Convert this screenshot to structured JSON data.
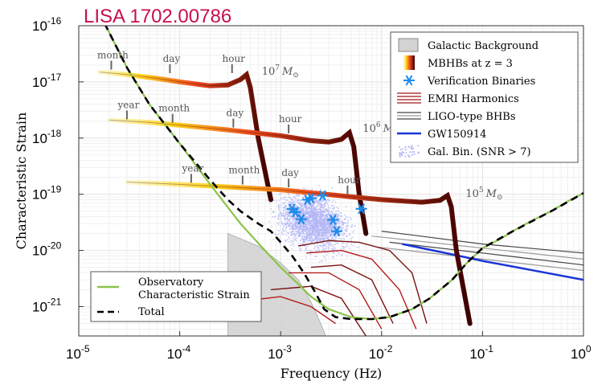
{
  "chart_data": {
    "type": "line",
    "title": "LISA 1702.00786",
    "xlabel": "Frequency (Hz)",
    "ylabel": "Characteristic Strain",
    "x_scale": "log",
    "y_scale": "log",
    "xlim": [
      1e-05,
      1
    ],
    "ylim": [
      3e-22,
      1e-16
    ],
    "x_ticks": [
      {
        "value": 1e-05,
        "base": "10",
        "exp": "-5"
      },
      {
        "value": 0.0001,
        "base": "10",
        "exp": "-4"
      },
      {
        "value": 0.001,
        "base": "10",
        "exp": "-3"
      },
      {
        "value": 0.01,
        "base": "10",
        "exp": "-2"
      },
      {
        "value": 0.1,
        "base": "10",
        "exp": "-1"
      },
      {
        "value": 1,
        "base": "10",
        "exp": "0"
      }
    ],
    "y_ticks": [
      {
        "value": 1e-16,
        "base": "10",
        "exp": "-16"
      },
      {
        "value": 1e-17,
        "base": "10",
        "exp": "-17"
      },
      {
        "value": 1e-18,
        "base": "10",
        "exp": "-18"
      },
      {
        "value": 1e-19,
        "base": "10",
        "exp": "-19"
      },
      {
        "value": 1e-20,
        "base": "10",
        "exp": "-20"
      },
      {
        "value": 1e-21,
        "base": "10",
        "exp": "-21"
      }
    ],
    "grid": true,
    "legend_position": "top-right",
    "legend": [
      {
        "label": "Galactic Background",
        "symbol": "gray-box"
      },
      {
        "label": "MBHBs at z = 3",
        "symbol": "gradient-bar"
      },
      {
        "label": "Verification Binaries",
        "symbol": "blue-asterisk"
      },
      {
        "label": "EMRI Harmonics",
        "symbol": "red-lines"
      },
      {
        "label": "LIGO-type BHBs",
        "symbol": "gray-lines"
      },
      {
        "label": "GW150914",
        "symbol": "blue-line"
      },
      {
        "label": "Gal. Bin. (SNR > 7)",
        "symbol": "lavender-dots"
      }
    ],
    "legend2_position": "bottom-left",
    "legend2": [
      {
        "label": "Observatory",
        "label2": "Characteristic Strain",
        "symbol": "green-line"
      },
      {
        "label": "Total",
        "symbol": "black-dash"
      }
    ],
    "series": [
      {
        "name": "Observatory Characteristic Strain",
        "color": "#8bc34a",
        "points": [
          [
            1.8e-05,
            1.1e-16
          ],
          [
            3e-05,
            1.8e-17
          ],
          [
            5e-05,
            4e-18
          ],
          [
            0.0001,
            8e-19
          ],
          [
            0.0002,
            1.5e-19
          ],
          [
            0.0004,
            3e-20
          ],
          [
            0.0007,
            1e-20
          ],
          [
            0.001,
            5e-21
          ],
          [
            0.0015,
            2.5e-21
          ],
          [
            0.002,
            1.5e-21
          ],
          [
            0.003,
            9e-22
          ],
          [
            0.005,
            6.5e-22
          ],
          [
            0.008,
            6e-22
          ],
          [
            0.012,
            6.5e-22
          ],
          [
            0.02,
            9e-22
          ],
          [
            0.03,
            1.4e-21
          ],
          [
            0.05,
            3e-21
          ],
          [
            0.07,
            6e-21
          ],
          [
            0.1,
            1.1e-20
          ],
          [
            0.15,
            1.6e-20
          ],
          [
            0.2,
            2.2e-20
          ],
          [
            0.3,
            3.3e-20
          ],
          [
            0.5,
            5.2e-20
          ],
          [
            0.7,
            7.5e-20
          ],
          [
            1,
            1.05e-19
          ]
        ]
      },
      {
        "name": "Total",
        "color": "#000000",
        "points": [
          [
            1.8e-05,
            1.1e-16
          ],
          [
            3e-05,
            1.8e-17
          ],
          [
            5e-05,
            4e-18
          ],
          [
            0.0001,
            8e-19
          ],
          [
            0.0002,
            1.8e-19
          ],
          [
            0.0003,
            8e-20
          ],
          [
            0.0004,
            5e-20
          ],
          [
            0.0006,
            3e-20
          ],
          [
            0.0008,
            2.2e-20
          ],
          [
            0.001,
            1.4e-20
          ],
          [
            0.0013,
            8e-21
          ],
          [
            0.0017,
            4e-21
          ],
          [
            0.0022,
            1.8e-21
          ],
          [
            0.0027,
            9e-22
          ],
          [
            0.0035,
            6.5e-22
          ],
          [
            0.005,
            6e-22
          ],
          [
            0.008,
            6e-22
          ],
          [
            0.012,
            6.5e-22
          ],
          [
            0.02,
            9e-22
          ],
          [
            0.03,
            1.4e-21
          ],
          [
            0.05,
            3e-21
          ],
          [
            0.07,
            6e-21
          ],
          [
            0.1,
            1.1e-20
          ],
          [
            0.2,
            2.2e-20
          ],
          [
            0.5,
            5.2e-20
          ],
          [
            1,
            1.05e-19
          ]
        ]
      },
      {
        "name": "Galactic Background",
        "color": "#d3d3d3",
        "points": [
          [
            0.0003,
            3e-22
          ],
          [
            0.0003,
            2e-20
          ],
          [
            0.0006,
            1.2e-20
          ],
          [
            0.001,
            6e-21
          ],
          [
            0.0015,
            3e-21
          ],
          [
            0.002,
            1.2e-21
          ],
          [
            0.0025,
            5e-22
          ],
          [
            0.0028,
            3e-22
          ]
        ]
      },
      {
        "name": "MBHB 10^7 M_sun",
        "color": "#5a0000",
        "points": [
          [
            1.6e-05,
            1.5e-17
          ],
          [
            3e-05,
            1.35e-17
          ],
          [
            6e-05,
            1.15e-17
          ],
          [
            0.0001,
            1e-17
          ],
          [
            0.0002,
            8.5e-18
          ],
          [
            0.0003,
            8.8e-18
          ],
          [
            0.0004,
            1.1e-17
          ],
          [
            0.00046,
            1.35e-17
          ],
          [
            0.0005,
            8e-18
          ],
          [
            0.0006,
            1e-18
          ],
          [
            0.0008,
            8e-20
          ]
        ]
      },
      {
        "name": "MBHB 10^6 M_sun",
        "color": "#5a0000",
        "points": [
          [
            2e-05,
            2.1e-18
          ],
          [
            5e-05,
            1.9e-18
          ],
          [
            0.0001,
            1.7e-18
          ],
          [
            0.0003,
            1.4e-18
          ],
          [
            0.001,
            1.1e-18
          ],
          [
            0.002,
            9e-19
          ],
          [
            0.003,
            8.5e-19
          ],
          [
            0.004,
            9.5e-19
          ],
          [
            0.0048,
            1.25e-18
          ],
          [
            0.0053,
            7e-19
          ],
          [
            0.006,
            1e-19
          ],
          [
            0.007,
            2e-20
          ]
        ]
      },
      {
        "name": "MBHB 10^5 M_sun",
        "color": "#5a0000",
        "points": [
          [
            3e-05,
            1.65e-19
          ],
          [
            0.0001,
            1.5e-19
          ],
          [
            0.0003,
            1.35e-19
          ],
          [
            0.001,
            1.2e-19
          ],
          [
            0.005,
            9e-20
          ],
          [
            0.01,
            8e-20
          ],
          [
            0.025,
            7.2e-20
          ],
          [
            0.038,
            7.8e-20
          ],
          [
            0.045,
            9.5e-20
          ],
          [
            0.049,
            6e-20
          ],
          [
            0.055,
            1e-20
          ],
          [
            0.075,
            5e-22
          ]
        ]
      },
      {
        "name": "GW150914",
        "color": "#1a36d6",
        "points": [
          [
            0.016,
            1.3e-20
          ],
          [
            0.05,
            8.5e-21
          ],
          [
            0.1,
            6.5e-21
          ],
          [
            0.3,
            4.5e-21
          ],
          [
            1,
            3e-21
          ]
        ]
      }
    ],
    "emri_harmonics": [
      [
        [
          0.0015,
          1.2e-20
        ],
        [
          0.003,
          1.5e-20
        ],
        [
          0.006,
          1.4e-20
        ],
        [
          0.012,
          1e-20
        ],
        [
          0.02,
          4e-21
        ],
        [
          0.028,
          5e-22
        ]
      ],
      [
        [
          0.0018,
          9e-21
        ],
        [
          0.004,
          1e-20
        ],
        [
          0.008,
          7e-21
        ],
        [
          0.015,
          2e-21
        ],
        [
          0.022,
          4e-22
        ]
      ],
      [
        [
          0.002,
          5e-21
        ],
        [
          0.004,
          5.5e-21
        ],
        [
          0.008,
          3e-21
        ],
        [
          0.013,
          5e-22
        ]
      ],
      [
        [
          0.0012,
          4e-21
        ],
        [
          0.003,
          4e-21
        ],
        [
          0.006,
          2e-21
        ],
        [
          0.01,
          4e-22
        ]
      ],
      [
        [
          0.0008,
          2e-21
        ],
        [
          0.002,
          2.3e-21
        ],
        [
          0.004,
          1.4e-21
        ],
        [
          0.007,
          3e-22
        ]
      ],
      [
        [
          0.0005,
          1.3e-21
        ],
        [
          0.001,
          1.5e-21
        ],
        [
          0.002,
          1e-21
        ],
        [
          0.0035,
          5e-22
        ]
      ]
    ],
    "ligo_bhbs": [
      [
        [
          0.01,
          2.2e-20
        ],
        [
          0.1,
          1.3e-20
        ],
        [
          1,
          9e-21
        ]
      ],
      [
        [
          0.008,
          1.8e-20
        ],
        [
          0.1,
          1.1e-20
        ],
        [
          1,
          7e-21
        ]
      ],
      [
        [
          0.012,
          1.4e-20
        ],
        [
          0.1,
          9e-21
        ],
        [
          1,
          5.5e-21
        ]
      ],
      [
        [
          0.009,
          1.15e-20
        ],
        [
          0.1,
          7e-21
        ],
        [
          1,
          4.4e-21
        ]
      ]
    ],
    "verification_binaries": [
      [
        0.0013,
        5.5e-20
      ],
      [
        0.0014,
        4.8e-20
      ],
      [
        0.0016,
        3.6e-20
      ],
      [
        0.00185,
        8e-20
      ],
      [
        0.002,
        8.5e-20
      ],
      [
        0.0026,
        9.5e-20
      ],
      [
        0.0033,
        3.5e-20
      ],
      [
        0.0036,
        2.2e-20
      ],
      [
        0.0063,
        5.5e-20
      ]
    ],
    "annotations": {
      "mass_labels": [
        {
          "base": "10",
          "exp": "7",
          "unit": "M",
          "at": [
            0.00065,
            1.35e-17
          ]
        },
        {
          "base": "10",
          "exp": "6",
          "unit": "M",
          "at": [
            0.0065,
            1.3e-18
          ]
        },
        {
          "base": "10",
          "exp": "5",
          "unit": "M",
          "at": [
            0.068,
            9e-20
          ]
        }
      ],
      "time_markers": [
        {
          "label": "month",
          "at": [
            2.1e-05,
            1.5e-17
          ]
        },
        {
          "label": "day",
          "at": [
            8e-05,
            1.3e-17
          ]
        },
        {
          "label": "hour",
          "at": [
            0.00033,
            1.3e-17
          ]
        },
        {
          "label": "year",
          "at": [
            3e-05,
            1.95e-18
          ]
        },
        {
          "label": "month",
          "at": [
            8.5e-05,
            1.7e-18
          ]
        },
        {
          "label": "day",
          "at": [
            0.00034,
            1.4e-18
          ]
        },
        {
          "label": "hour",
          "at": [
            0.0012,
            1.1e-18
          ]
        },
        {
          "label": "year",
          "at": [
            0.00013,
            1.45e-19
          ]
        },
        {
          "label": "month",
          "at": [
            0.00042,
            1.35e-19
          ]
        },
        {
          "label": "day",
          "at": [
            0.0012,
            1.2e-19
          ]
        },
        {
          "label": "hour",
          "at": [
            0.0046,
            9e-20
          ]
        }
      ]
    }
  }
}
